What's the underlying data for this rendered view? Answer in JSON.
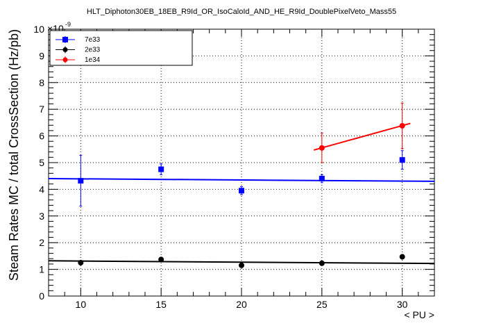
{
  "chart_data": {
    "type": "scatter",
    "title": "HLT_Diphoton30EB_18EB_R9Id_OR_IsoCaloId_AND_HE_R9Id_DoublePixelVeto_Mass55",
    "xlabel": "< PU >",
    "ylabel": "Steam Rates MC / total CrossSection (Hz/pb)",
    "y_multiplier": "×10",
    "y_exponent": "-9",
    "xlim": [
      8,
      32
    ],
    "ylim": [
      0,
      10
    ],
    "x_ticks": [
      10,
      15,
      20,
      25,
      30
    ],
    "y_ticks": [
      0,
      1,
      2,
      3,
      4,
      5,
      6,
      7,
      8,
      9,
      10
    ],
    "grid": true,
    "legend_position": "top-left",
    "series": [
      {
        "name": "7e33",
        "color": "#0000ff",
        "marker": "square",
        "x": [
          10,
          15,
          20,
          25,
          30
        ],
        "y": [
          4.32,
          4.75,
          3.95,
          4.4,
          5.1
        ],
        "yerr": [
          0.95,
          0.2,
          0.15,
          0.15,
          0.35
        ],
        "fit": {
          "x": [
            8,
            32
          ],
          "y": [
            4.4,
            4.3
          ]
        }
      },
      {
        "name": "2e33",
        "color": "#000000",
        "marker": "circle",
        "x": [
          10,
          15,
          20,
          25,
          30
        ],
        "y": [
          1.25,
          1.37,
          1.15,
          1.23,
          1.47
        ],
        "yerr": [
          0.05,
          0.05,
          0.05,
          0.05,
          0.06
        ],
        "fit": {
          "x": [
            8,
            32
          ],
          "y": [
            1.32,
            1.22
          ]
        }
      },
      {
        "name": "1e34",
        "color": "#ff0000",
        "marker": "circle",
        "x": [
          25,
          30
        ],
        "y": [
          5.55,
          6.38
        ],
        "yerr": [
          0.55,
          0.85
        ],
        "fit": {
          "x": [
            24.5,
            30.5
          ],
          "y": [
            5.47,
            6.47
          ]
        }
      }
    ]
  }
}
